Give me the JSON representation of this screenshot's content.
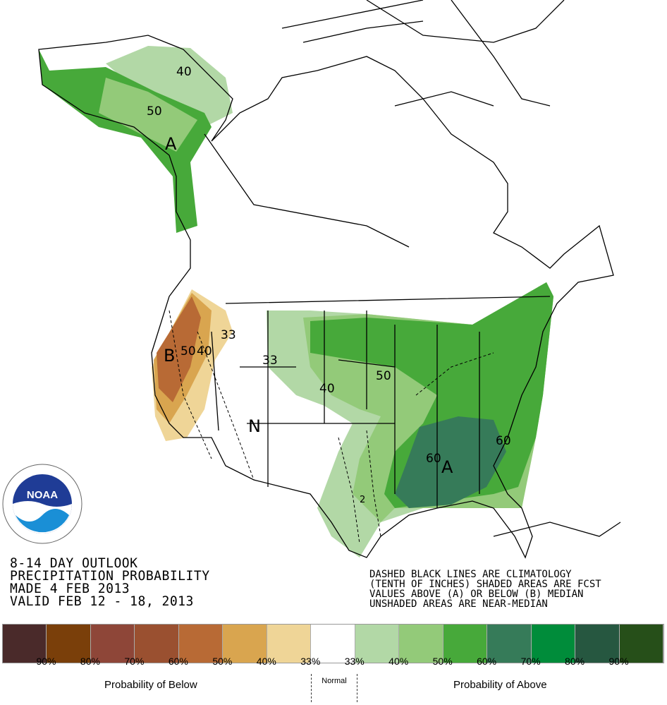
{
  "title_lines": [
    "8-14 DAY OUTLOOK",
    "PRECIPITATION PROBABILITY",
    "MADE  4 FEB 2013",
    "VALID  FEB 12 - 18, 2013"
  ],
  "notes": [
    "DASHED BLACK LINES ARE CLIMATOLOGY",
    "(TENTH OF INCHES) SHADED AREAS ARE FCST",
    "VALUES ABOVE (A) OR BELOW (B) MEDIAN",
    "UNSHADED AREAS ARE NEAR-MEDIAN"
  ],
  "logo_text": "NOAA",
  "map_labels": {
    "ak40": "40",
    "ak50": "50",
    "akA": "A",
    "wB": "B",
    "w50": "50",
    "w40": "40",
    "w33": "33",
    "c33": "33",
    "c40": "40",
    "c50": "50",
    "se60a": "60",
    "seA": "A",
    "se60b": "60",
    "n": "N",
    "tx2": "2"
  },
  "legend": {
    "colors": [
      "#4a2a2a",
      "#7a3f0a",
      "#8e4638",
      "#9a5030",
      "#b86a35",
      "#d9a54f",
      "#efd597",
      "#ffffff",
      "#b2d8a6",
      "#93ca79",
      "#47a93a",
      "#367b59",
      "#008c3a",
      "#265740",
      "#264f19"
    ],
    "labels": [
      "90%",
      "80%",
      "70%",
      "60%",
      "50%",
      "40%",
      "33%",
      "33%",
      "40%",
      "50%",
      "60%",
      "70%",
      "80%",
      "90%"
    ],
    "below": "Probability of Below",
    "normal": "Normal",
    "above": "Probability of Above"
  }
}
